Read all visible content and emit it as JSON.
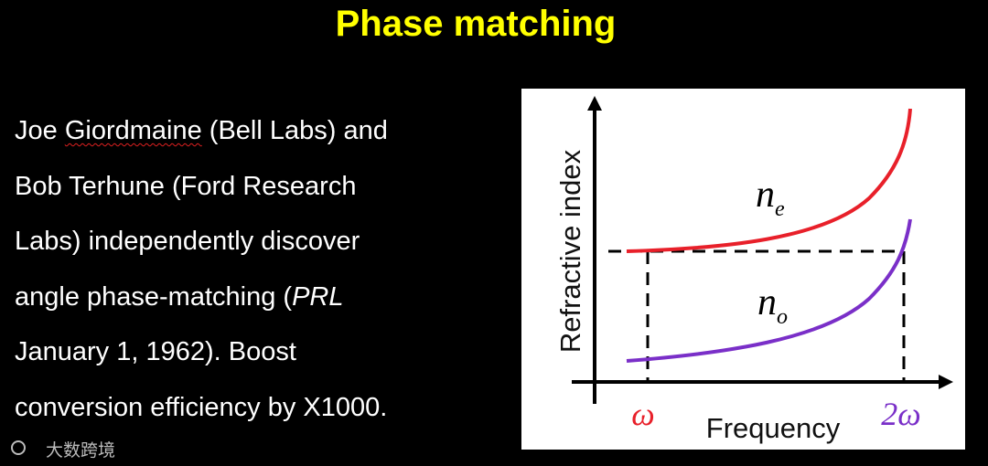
{
  "title": "Phase matching",
  "body": {
    "lines": [
      [
        "Joe ",
        "Giordmaine",
        " (Bell Labs) and"
      ],
      [
        "Bob Terhune (Ford Research"
      ],
      [
        "Labs) independently discover"
      ],
      [
        "angle phase-matching (",
        "PRL"
      ],
      [
        "January 1, 1962). Boost"
      ],
      [
        "conversion efficiency by X1000."
      ]
    ]
  },
  "diagram": {
    "y_axis_label": "Refractive index",
    "x_axis_label": "Frequency",
    "x_marks": [
      "ω",
      "2ω"
    ],
    "curves": [
      {
        "symbol": "n",
        "subscript": "e",
        "color": "#e8202a"
      },
      {
        "symbol": "n",
        "subscript": "o",
        "color": "#7a2fc8"
      }
    ]
  },
  "watermark": "大数跨境"
}
